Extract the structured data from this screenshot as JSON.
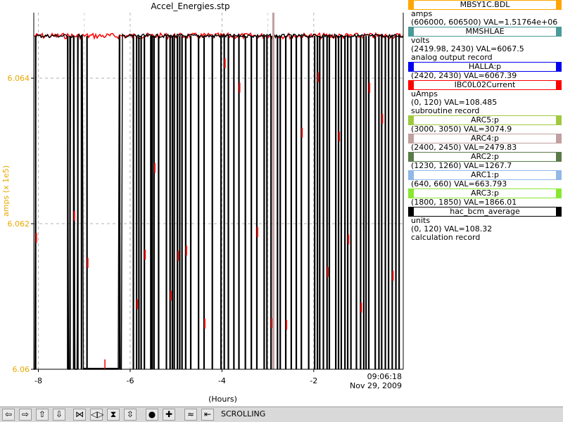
{
  "chart_data": {
    "type": "line",
    "title": "Accel_Energies.stp",
    "ylabel": "amps (x 1e5)",
    "xlabel": "(Hours)",
    "ylim": [
      6.06,
      6.0649
    ],
    "xlim": [
      -8.1,
      -0.05
    ],
    "y_ticks": [
      "6.06",
      "6.062",
      "6.064"
    ],
    "y_tick_values": [
      6.06,
      6.062,
      6.064
    ],
    "x_ticks": [
      "-8",
      "-6",
      "-4",
      "-2"
    ],
    "x_tick_values": [
      -8,
      -6,
      -4,
      -2
    ],
    "x_end_time": "09:06:18",
    "x_end_date": "Nov 29, 2009",
    "grid": true,
    "ylabel_color": "#e8a800",
    "series": [
      {
        "name": "MBSY1C.BDL",
        "color": "#000000",
        "baseline": 6.06458,
        "low": 6.06,
        "segments": [
          [
            -8.1,
            -8.06
          ],
          [
            -7.36,
            -7.31
          ],
          [
            -7.22,
            -7.14
          ],
          [
            -7.04,
            -6.94
          ],
          [
            -6.23,
            -6.19
          ]
        ]
      },
      {
        "name": "IBC0L02Current",
        "color": "#ff0000"
      },
      {
        "name": "ARC4:p",
        "color": "#c0a0a0",
        "marker_x": -2.88
      }
    ],
    "drop_points": [
      -8.06,
      -7.36,
      -7.31,
      -7.23,
      -7.14,
      -7.06,
      -6.94,
      -6.23,
      -5.93,
      -5.86,
      -5.81,
      -5.76,
      -5.69,
      -5.55,
      -5.52,
      -5.48,
      -5.38,
      -5.21,
      -5.13,
      -5.08,
      -5.04,
      -4.97,
      -4.92,
      -4.87,
      -4.79,
      -4.68,
      -4.51,
      -4.39,
      -4.21,
      -4.02,
      -3.95,
      -3.86,
      -3.74,
      -3.63,
      -3.49,
      -3.36,
      -3.24,
      -3.08,
      -3.02,
      -2.93,
      -2.79,
      -2.73,
      -2.61,
      -2.49,
      -2.38,
      -2.27,
      -2.11,
      -1.98,
      -1.92,
      -1.87,
      -1.79,
      -1.71,
      -1.66,
      -1.52,
      -1.46,
      -1.4,
      -1.32,
      -1.26,
      -1.19,
      -1.07,
      -0.98,
      -0.91,
      -0.86,
      -0.8,
      -0.66,
      -0.58,
      -0.52,
      -0.44,
      -0.37,
      -0.29,
      -0.21,
      -0.14
    ]
  },
  "legend": {
    "items": [
      {
        "name": "MBSY1C.BDL",
        "color": "#ffa500",
        "lines": [
          "amps",
          "(606000, 606500)  VAL=1.51764e+06"
        ]
      },
      {
        "name": "MMSHLAE",
        "color": "#4a9a9a",
        "lines": [
          "volts",
          "(2419.98, 2430) VAL=6067.5",
          "analog output record"
        ]
      },
      {
        "name": "HALLA:p",
        "color": "#0000ee",
        "lines": [
          "(2420, 2430) VAL=6067.39"
        ]
      },
      {
        "name": "IBC0L02Current",
        "color": "#ff0000",
        "lines": [
          "uAmps",
          "(0, 120) VAL=108.485",
          "subroutine record"
        ]
      },
      {
        "name": "ARC5:p",
        "color": "#a0c840",
        "lines": [
          "(3000, 3050) VAL=3074.9"
        ]
      },
      {
        "name": "ARC4:p",
        "color": "#c0a0a0",
        "lines": [
          "(2400, 2450) VAL=2479.83"
        ]
      },
      {
        "name": "ARC2:p",
        "color": "#5a7a4a",
        "lines": [
          "(1230, 1260) VAL=1267.7"
        ]
      },
      {
        "name": "ARC1:p",
        "color": "#90b8e8",
        "lines": [
          "(640, 660) VAL=663.793"
        ]
      },
      {
        "name": "ARC3:p",
        "color": "#88e830",
        "lines": [
          "(1800, 1850) VAL=1866.01"
        ]
      },
      {
        "name": "hac_bcm_average",
        "color": "#000000",
        "lines": [
          "units",
          "(0, 120) VAL=108.32",
          "calculation record"
        ]
      }
    ]
  },
  "toolbar": {
    "status": "SCROLLING",
    "buttons": [
      {
        "name": "scroll-left-icon",
        "glyph": "⇦"
      },
      {
        "name": "scroll-right-icon",
        "glyph": "⇨"
      },
      {
        "name": "scroll-up-icon",
        "glyph": "⇧"
      },
      {
        "name": "scroll-down-icon",
        "glyph": "⇩"
      },
      {
        "name": "zoom-in-horizontal-icon",
        "glyph": "⋈"
      },
      {
        "name": "zoom-out-horizontal-icon",
        "glyph": "◁▷"
      },
      {
        "name": "zoom-in-vertical-icon",
        "glyph": "⧗"
      },
      {
        "name": "zoom-out-vertical-icon",
        "glyph": "⇳"
      },
      {
        "name": "record-icon",
        "glyph": "●"
      },
      {
        "name": "crosshair-icon",
        "glyph": "✚"
      },
      {
        "name": "autoscale-icon",
        "glyph": "≈"
      },
      {
        "name": "scroll-mode-icon",
        "glyph": "⇤"
      }
    ]
  }
}
